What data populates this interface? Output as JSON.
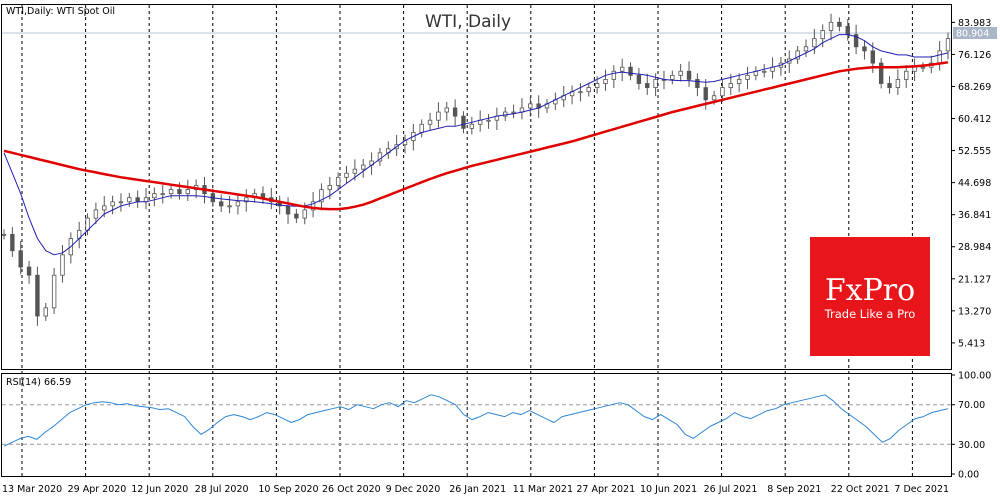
{
  "header": {
    "title_left": "WTI,Daily:  WTI Spot Oil",
    "title_center": "WTI, Daily"
  },
  "price_badge": {
    "value": "80.904",
    "bg": "#a9b6c8"
  },
  "colors": {
    "candle": "#555555",
    "ma_fast": "#1e1eb4",
    "ma_slow": "#e00000",
    "rsi_line": "#2f86d6",
    "grid": "#000000",
    "logo_bg": "#e8151b"
  },
  "logo": {
    "main": "FxPro",
    "sub": "Trade Like a Pro"
  },
  "chart_data": [
    {
      "type": "line",
      "title": "WTI, Daily",
      "price_axis_ticks": [
        "83.983",
        "76.126",
        "68.269",
        "60.412",
        "52.555",
        "44.698",
        "36.841",
        "28.984",
        "21.127",
        "13.270",
        "5.413"
      ],
      "ylim": [
        -0.5,
        88
      ],
      "date_labels": [
        "13 Mar 2020",
        "29 Apr 2020",
        "12 Jun 2020",
        "28 Jul 2020",
        "10 Sep 2020",
        "26 Oct 2020",
        "9 Dec 2020",
        "26 Jan 2021",
        "11 Mar 2021",
        "27 Apr 2021",
        "10 Jun 2021",
        "26 Jul 2021",
        "8 Sep 2021",
        "22 Oct 2021",
        "7 Dec 2021"
      ],
      "last_price": 80.904,
      "series": [
        {
          "values": [
            32,
            28,
            24,
            22,
            12,
            14,
            22,
            27,
            31,
            33,
            36,
            38,
            39,
            40,
            40,
            41,
            40,
            41,
            42,
            42,
            43,
            42,
            43,
            44,
            42,
            40,
            39,
            39,
            40,
            41,
            42,
            41,
            40,
            39,
            37,
            36,
            38,
            40,
            43,
            44,
            46,
            47,
            48,
            49,
            50,
            52,
            53,
            54,
            55,
            57,
            59,
            60,
            62,
            63,
            61,
            58,
            59,
            60,
            60,
            61,
            62,
            62,
            63,
            64,
            63,
            64,
            65,
            66,
            67,
            67,
            68,
            69,
            70,
            72,
            73,
            71,
            69,
            68,
            70,
            70,
            71,
            72,
            70,
            68,
            65,
            66,
            68,
            69,
            70,
            71,
            72,
            72,
            73,
            74,
            75,
            77,
            78,
            80,
            82,
            84,
            83,
            81,
            78,
            77,
            74,
            69,
            68,
            70,
            72,
            73,
            73,
            74,
            77,
            80
          ]
        },
        {
          "values": [
            52,
            47,
            42,
            36,
            31,
            28,
            27,
            27.5,
            29,
            31,
            33,
            35,
            37,
            38,
            39,
            39.5,
            40,
            40,
            40.5,
            41,
            41.5,
            41.5,
            41.5,
            41.5,
            41.3,
            41,
            40.7,
            40.5,
            40.3,
            40.2,
            40,
            39.8,
            39.5,
            39.2,
            39,
            38.9,
            39,
            39.5,
            40.5,
            41.5,
            43,
            44.5,
            46,
            47.5,
            49,
            50.5,
            52,
            53.5,
            55,
            56,
            57,
            57.5,
            58,
            58.5,
            58.5,
            59,
            59.5,
            60,
            60.5,
            61,
            61.3,
            61.6,
            62,
            62.5,
            63,
            64,
            65,
            66,
            67,
            68,
            69,
            70,
            71,
            71.5,
            71.8,
            71.5,
            71.3,
            71,
            70.5,
            70,
            69.8,
            69.7,
            69.7,
            69.5,
            69.3,
            69.5,
            70,
            70.5,
            71,
            71.5,
            72,
            72.5,
            73,
            73.5,
            74.5,
            75.5,
            76.5,
            77.5,
            79,
            80,
            81,
            81,
            80.5,
            79.5,
            78,
            77,
            76.5,
            76,
            76,
            75.5,
            75.5,
            75.5,
            76,
            76.5
          ]
        },
        {
          "values": [
            52.5,
            52,
            51.5,
            51,
            50.5,
            50,
            49.5,
            49,
            48.5,
            48,
            47.6,
            47.2,
            46.8,
            46.4,
            46,
            45.7,
            45.4,
            45.1,
            44.8,
            44.5,
            44.2,
            43.9,
            43.6,
            43.3,
            43,
            42.7,
            42.4,
            42.1,
            41.8,
            41.5,
            41.2,
            40.8,
            40.4,
            40,
            39.6,
            39.2,
            38.8,
            38.5,
            38.3,
            38.2,
            38.2,
            38.4,
            38.8,
            39.3,
            40,
            40.8,
            41.6,
            42.4,
            43.2,
            44,
            44.8,
            45.6,
            46.3,
            47,
            47.6,
            48.2,
            48.8,
            49.3,
            49.8,
            50.3,
            50.8,
            51.3,
            51.8,
            52.3,
            52.8,
            53.3,
            53.8,
            54.3,
            54.8,
            55.4,
            56,
            56.6,
            57.2,
            57.8,
            58.4,
            59,
            59.6,
            60.2,
            60.8,
            61.4,
            62,
            62.5,
            63,
            63.5,
            64,
            64.5,
            65,
            65.5,
            66,
            66.5,
            67,
            67.5,
            68,
            68.5,
            69,
            69.5,
            70,
            70.5,
            71,
            71.5,
            72,
            72.3,
            72.6,
            72.8,
            73,
            73,
            73,
            73,
            73.1,
            73.2,
            73.4,
            73.6,
            73.9,
            74.2
          ]
        }
      ]
    },
    {
      "type": "line",
      "title": "RSI(14) 66.59",
      "yticks": [
        "100.00",
        "70.00",
        "30.00",
        "0.00"
      ],
      "ylim": [
        0,
        100
      ],
      "levels": [
        70,
        30
      ],
      "series": [
        {
          "values": [
            28,
            32,
            36,
            38,
            35,
            42,
            48,
            55,
            62,
            66,
            70,
            72,
            73,
            72,
            70,
            71,
            69,
            68,
            67,
            65,
            66,
            62,
            58,
            48,
            40,
            45,
            52,
            58,
            60,
            58,
            55,
            58,
            62,
            60,
            56,
            52,
            55,
            60,
            62,
            64,
            66,
            68,
            65,
            70,
            68,
            66,
            70,
            72,
            68,
            74,
            72,
            76,
            80,
            78,
            74,
            70,
            60,
            55,
            58,
            62,
            60,
            58,
            62,
            60,
            64,
            60,
            56,
            52,
            58,
            60,
            62,
            64,
            66,
            68,
            70,
            72,
            70,
            64,
            58,
            55,
            60,
            55,
            50,
            40,
            36,
            42,
            48,
            52,
            56,
            62,
            58,
            56,
            60,
            64,
            66,
            70,
            72,
            74,
            76,
            78,
            80,
            74,
            66,
            60,
            54,
            48,
            40,
            32,
            36,
            44,
            50,
            56,
            58,
            62,
            64,
            66
          ]
        }
      ]
    }
  ]
}
